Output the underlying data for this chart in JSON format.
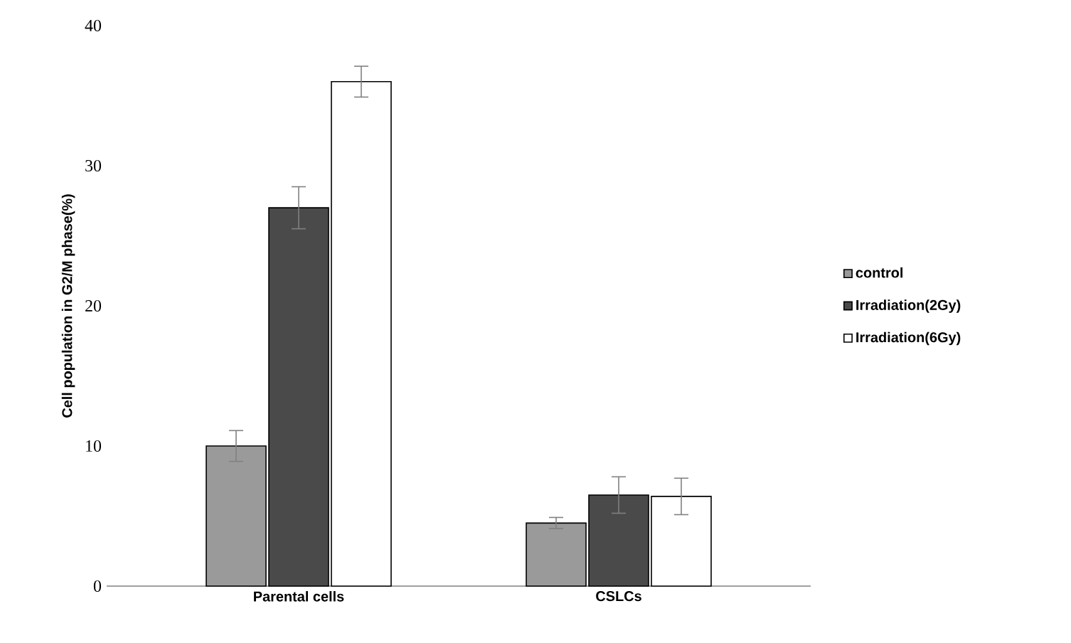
{
  "chart_data": {
    "type": "bar",
    "ylabel": "Cell population in G2/M phase(%)",
    "categories": [
      "Parental cells",
      "CSLCs"
    ],
    "series": [
      {
        "name": "control",
        "color": "#9a9a9a",
        "values": [
          10,
          4.5
        ],
        "errors": [
          1.1,
          0.4
        ]
      },
      {
        "name": "Irradiation(2Gy)",
        "color": "#4a4a4a",
        "values": [
          27,
          6.5
        ],
        "errors": [
          1.5,
          1.3
        ]
      },
      {
        "name": "Irradiation(6Gy)",
        "color": "#ffffff",
        "values": [
          36,
          6.4
        ],
        "errors": [
          1.1,
          1.3
        ]
      }
    ],
    "ylim": [
      0,
      40
    ],
    "yticks": [
      0,
      10,
      20,
      30,
      40
    ],
    "legend": "right"
  }
}
